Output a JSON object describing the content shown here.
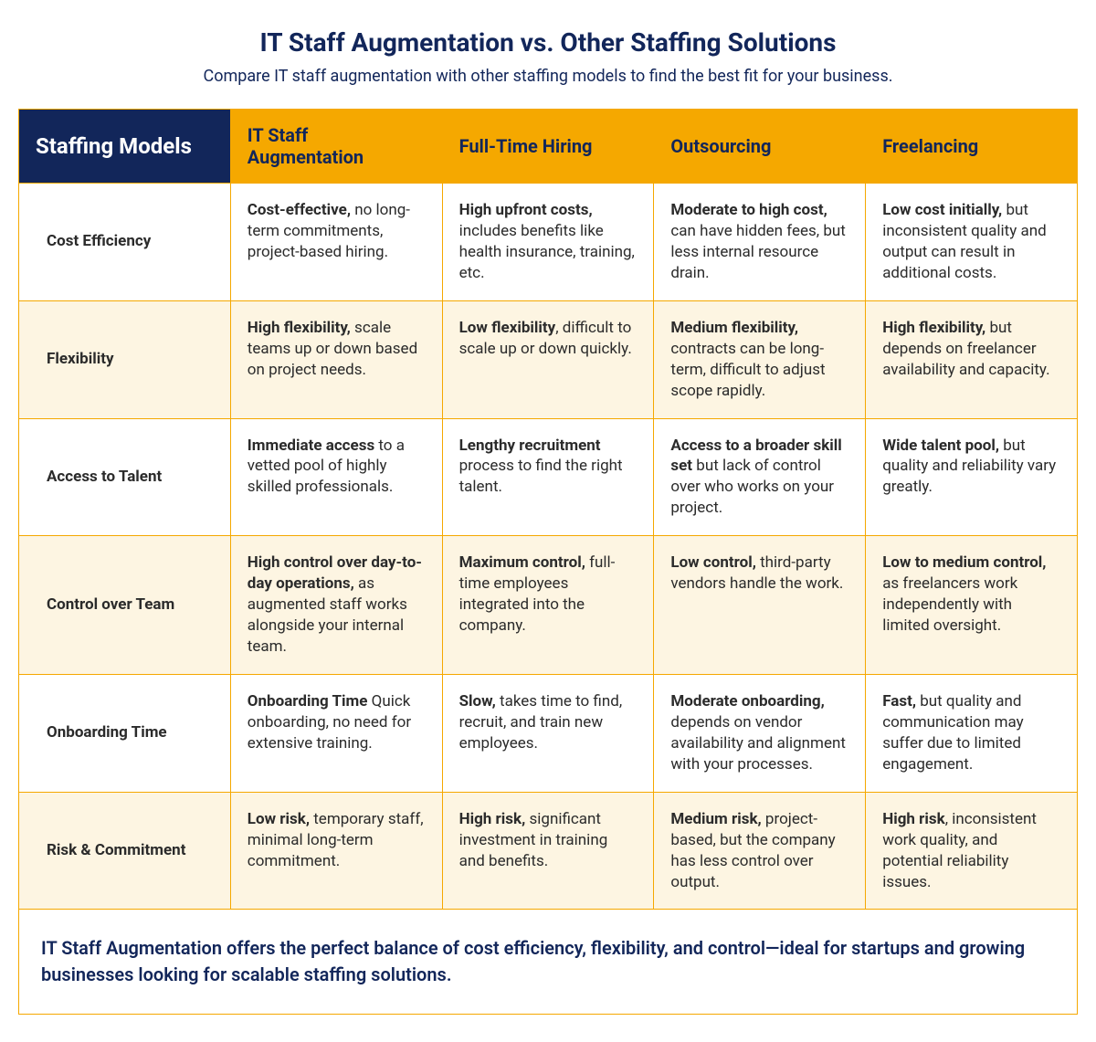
{
  "colors": {
    "title": "#12265a",
    "subtitle": "#12265a",
    "corner_bg": "#12265a",
    "header_bg": "#f5a800",
    "header_text": "#12265a",
    "row_even_bg": "#ffffff",
    "row_odd_bg": "#fdf5e2",
    "rowlabel_text": "#2b2b2b",
    "cell_text": "#2b2b2b",
    "border": "#f5a800",
    "footer_text": "#12265a",
    "footer_bg": "#ffffff"
  },
  "title": "IT Staff Augmentation vs. Other Staffing Solutions",
  "subtitle": "Compare IT staff augmentation with other staffing models to find the best fit for your business.",
  "corner": "Staffing Models",
  "columns": [
    "IT Staff Augmentation",
    "Full-Time Hiring",
    "Outsourcing",
    "Freelancing"
  ],
  "rows": [
    {
      "label": "Cost Efficiency",
      "cells": [
        {
          "bold": "Cost-effective,",
          "rest": " no long-term commitments, project-based hiring."
        },
        {
          "bold": "High upfront costs,",
          "rest": " includes benefits like health insurance, training, etc."
        },
        {
          "bold": "Moderate to high cost,",
          "rest": " can have hidden fees, but less internal resource drain."
        },
        {
          "bold": "Low cost initially,",
          "rest": " but inconsistent quality and output can result in additional costs."
        }
      ]
    },
    {
      "label": "Flexibility",
      "cells": [
        {
          "bold": "High flexibility,",
          "rest": " scale teams up or down based on project needs."
        },
        {
          "bold": "Low flexibility",
          "rest": ", difficult to scale up or down quickly."
        },
        {
          "bold": "Medium flexibility,",
          "rest": " contracts can be long-term, difficult to adjust scope rapidly."
        },
        {
          "bold": "High flexibility,",
          "rest": " but depends on freelancer availability and capacity."
        }
      ]
    },
    {
      "label": "Access to Talent",
      "cells": [
        {
          "bold": "Immediate access",
          "rest": " to a vetted pool of highly skilled professionals."
        },
        {
          "bold": "Lengthy recruitment",
          "rest": " process to find the right talent."
        },
        {
          "bold": "Access to a broader skill set",
          "rest": " but lack of control over who works on your project."
        },
        {
          "bold": "Wide talent pool,",
          "rest": " but quality and reliability vary greatly."
        }
      ]
    },
    {
      "label": "Control over Team",
      "cells": [
        {
          "bold": "High control over day-to-day operations,",
          "rest": " as augmented staff works alongside your internal team."
        },
        {
          "bold": "Maximum control,",
          "rest": " full-time employees integrated into the company."
        },
        {
          "bold": "Low control,",
          "rest": " third-party vendors handle the work."
        },
        {
          "bold": "Low to medium control,",
          "rest": " as freelancers work independently with limited oversight."
        }
      ]
    },
    {
      "label": "Onboarding Time",
      "cells": [
        {
          "bold": "Onboarding Time",
          "rest": " Quick onboarding, no need for extensive training."
        },
        {
          "bold": "Slow,",
          "rest": " takes time to find, recruit, and train new employees."
        },
        {
          "bold": "Moderate onboarding,",
          "rest": " depends on vendor availability and alignment with your processes."
        },
        {
          "bold": "Fast,",
          "rest": " but quality and communication may suffer due to limited engagement."
        }
      ]
    },
    {
      "label": "Risk & Commitment",
      "cells": [
        {
          "bold": "Low risk,",
          "rest": " temporary staff, minimal long-term commitment."
        },
        {
          "bold": "High risk,",
          "rest": " significant investment in training and benefits."
        },
        {
          "bold": "Medium risk,",
          "rest": " project-based, but the company has less control over output."
        },
        {
          "bold": "High risk",
          "rest": ", inconsistent work quality, and potential reliability issues."
        }
      ]
    }
  ],
  "footer": "IT Staff Augmentation offers the perfect balance of cost efficiency, flexibility, and control—ideal for startups and growing businesses looking for scalable staffing solutions."
}
